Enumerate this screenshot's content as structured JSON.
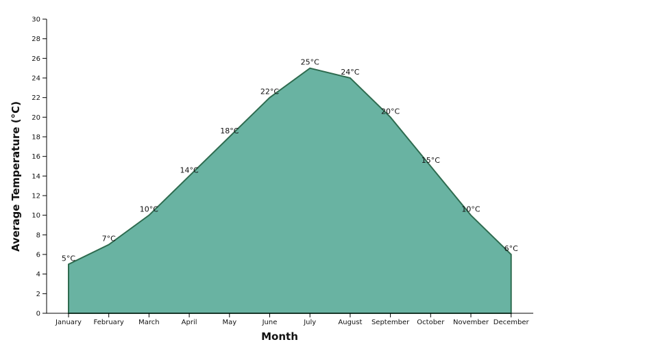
{
  "chart_data": {
    "type": "area",
    "categories": [
      "January",
      "February",
      "March",
      "April",
      "May",
      "June",
      "July",
      "August",
      "September",
      "October",
      "November",
      "December"
    ],
    "series": [
      {
        "values": [
          5,
          7,
          10,
          14,
          18,
          22,
          25,
          24,
          20,
          15,
          10,
          6
        ]
      }
    ],
    "data_labels": [
      "5°C",
      "7°C",
      "10°C",
      "14°C",
      "18°C",
      "22°C",
      "25°C",
      "24°C",
      "20°C",
      "15°C",
      "10°C",
      "6°C"
    ],
    "title": "",
    "xlabel": "Month",
    "ylabel": "Average Temperature (°C)",
    "ylim": [
      0,
      30
    ],
    "yticks": [
      0,
      2,
      4,
      6,
      8,
      10,
      12,
      14,
      16,
      18,
      20,
      22,
      24,
      26,
      28,
      30
    ],
    "grid": false,
    "colors": {
      "fill": "#69b3a2",
      "line": "#2e6b4f"
    }
  }
}
